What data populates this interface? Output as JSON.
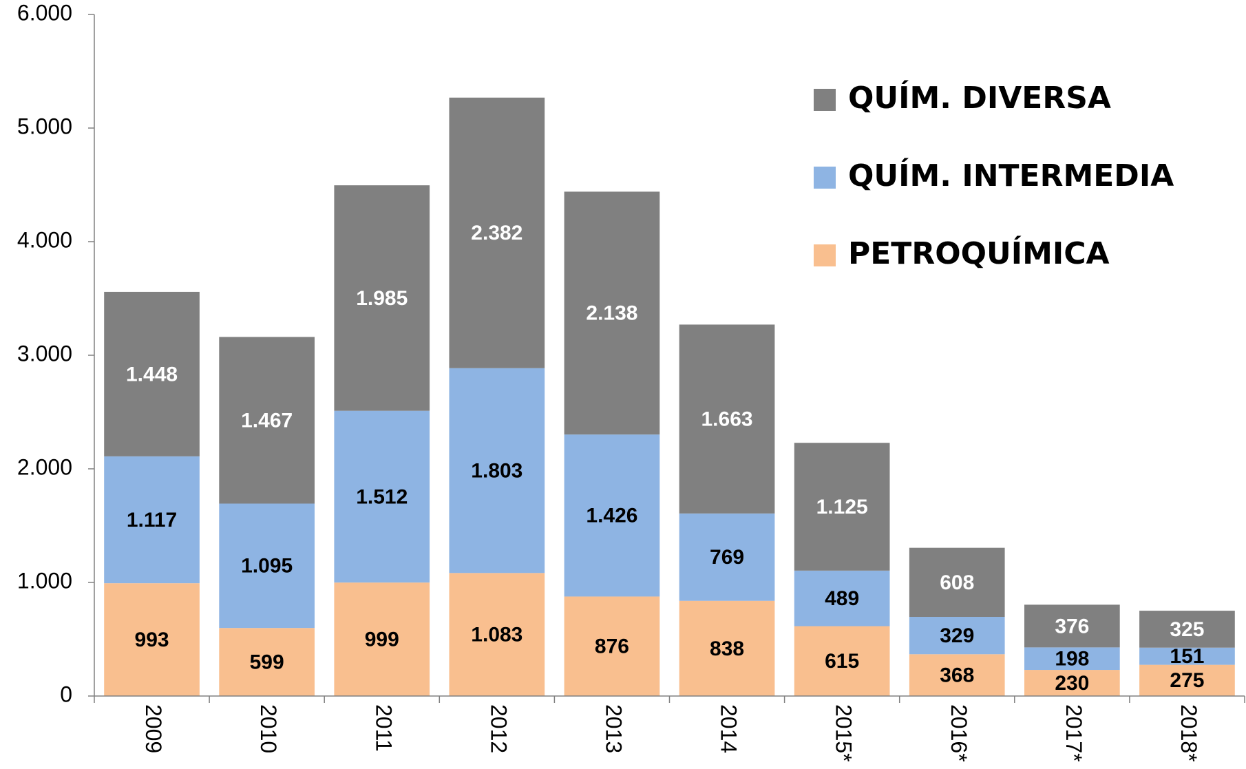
{
  "chart_data": {
    "type": "stacked_bar",
    "categories": [
      "2009",
      "2010",
      "2011",
      "2012",
      "2013",
      "2014",
      "2015*",
      "2016*",
      "2017*",
      "2018*"
    ],
    "series": [
      {
        "name": "PETROQUÍMICA",
        "color": "#f9bf8f",
        "label_color": "#000000",
        "values": [
          993,
          599,
          999,
          1083,
          876,
          838,
          615,
          368,
          230,
          275
        ],
        "value_labels": [
          "993",
          "599",
          "999",
          "1.083",
          "876",
          "838",
          "615",
          "368",
          "230",
          "275"
        ]
      },
      {
        "name": "QUÍM. INTERMEDIA",
        "color": "#8eb4e3",
        "label_color": "#000000",
        "values": [
          1117,
          1095,
          1512,
          1803,
          1426,
          769,
          489,
          329,
          198,
          151
        ],
        "value_labels": [
          "1.117",
          "1.095",
          "1.512",
          "1.803",
          "1.426",
          "769",
          "489",
          "329",
          "198",
          "151"
        ]
      },
      {
        "name": "QUÍM. DIVERSA",
        "color": "#808080",
        "label_color": "#ffffff",
        "values": [
          1448,
          1467,
          1985,
          2382,
          2138,
          1663,
          1125,
          608,
          376,
          325
        ],
        "value_labels": [
          "1.448",
          "1.467",
          "1.985",
          "2.382",
          "2.138",
          "1.663",
          "1.125",
          "608",
          "376",
          "325"
        ]
      }
    ],
    "ylim": [
      0,
      6000
    ],
    "yticks": [
      0,
      {
        "value": 1000,
        "label": "1.000"
      },
      {
        "value": 2000,
        "label": "2.000"
      },
      {
        "value": 3000,
        "label": "3.000"
      },
      {
        "value": 4000,
        "label": "4.000"
      },
      {
        "value": 5000,
        "label": "5.000"
      },
      {
        "value": 6000,
        "label": "6.000"
      }
    ],
    "legend": "upper right",
    "grid": false
  }
}
